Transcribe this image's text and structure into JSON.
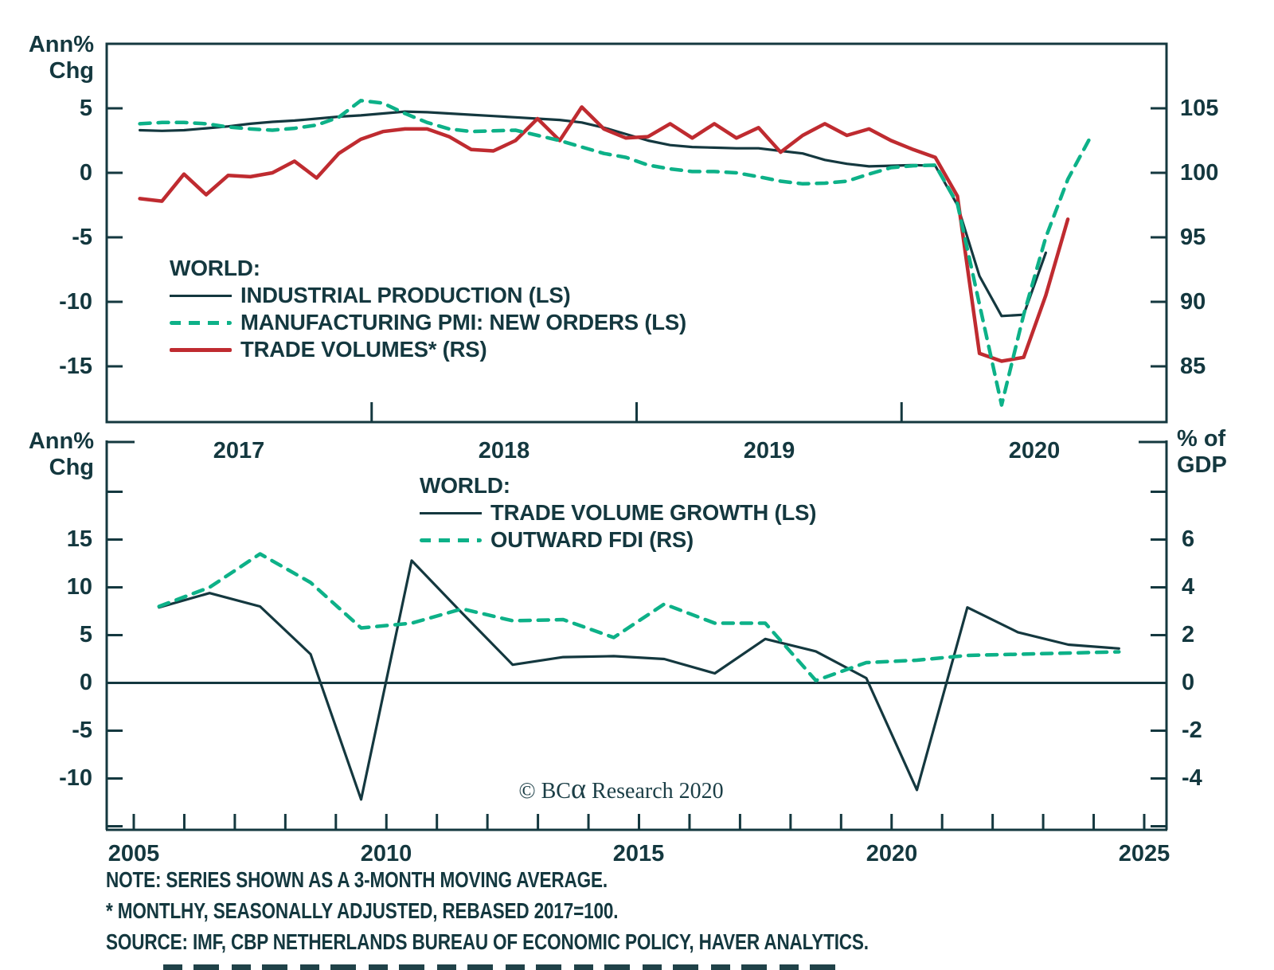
{
  "colors": {
    "ink": "#14383f",
    "green": "#0db188",
    "red": "#bf2b30",
    "background": "#ffffff"
  },
  "top_panel": {
    "y_axis_left": {
      "label_lines": [
        "Ann%",
        "Chg"
      ],
      "ticks": [
        "5",
        "0",
        "-5",
        "-10",
        "-15"
      ]
    },
    "y_axis_right": {
      "ticks": [
        "105",
        "100",
        "95",
        "90",
        "85"
      ]
    },
    "x_axis": {
      "labels": [
        "2017",
        "2018",
        "2019",
        "2020"
      ]
    },
    "legend": {
      "title": "WORLD:",
      "items": [
        {
          "label": "INDUSTRIAL PRODUCTION (LS)",
          "style": "solid",
          "color": "#14383f"
        },
        {
          "label": "MANUFACTURING PMI: NEW ORDERS (LS)",
          "style": "dashed",
          "color": "#0db188"
        },
        {
          "label": "TRADE VOLUMES* (RS)",
          "style": "solid",
          "color": "#bf2b30"
        }
      ]
    }
  },
  "bottom_panel": {
    "y_axis_left": {
      "label_lines": [
        "Ann%",
        "Chg"
      ],
      "ticks": [
        "15",
        "10",
        "5",
        "0",
        "-5",
        "-10"
      ]
    },
    "y_axis_right": {
      "label_lines": [
        "% of",
        "GDP"
      ],
      "ticks": [
        "6",
        "4",
        "2",
        "0",
        "-2",
        "-4"
      ]
    },
    "x_axis": {
      "labels": [
        "2005",
        "2010",
        "2015",
        "2020",
        "2025"
      ]
    },
    "legend": {
      "title": "WORLD:",
      "items": [
        {
          "label": "TRADE VOLUME GROWTH (LS)",
          "style": "solid",
          "color": "#14383f"
        },
        {
          "label": "OUTWARD FDI (RS)",
          "style": "dashed",
          "color": "#0db188"
        }
      ]
    },
    "copyright": {
      "prefix": "© BC",
      "alpha": "α",
      "suffix": " Research 2020"
    }
  },
  "footer": {
    "lines": [
      "NOTE: SERIES SHOWN AS A 3-MONTH MOVING AVERAGE.",
      "* MONTLHY, SEASONALLY ADJUSTED, REBASED 2017=100.",
      "SOURCE: IMF, CBP NETHERLANDS BUREAU OF ECONOMIC POLICY, HAVER ANALYTICS."
    ]
  },
  "chart_data": [
    {
      "type": "line",
      "panel": "top",
      "title": "WORLD",
      "x_unit": "month",
      "x_start": "2017-02",
      "x_axis_years": [
        2017,
        2018,
        2019,
        2020
      ],
      "ylim_left": [
        -19.3,
        10
      ],
      "ylim_right": [
        80.7,
        110
      ],
      "grid": false,
      "legend_position": "inside-left",
      "series": [
        {
          "name": "INDUSTRIAL PRODUCTION (LS)",
          "axis": "left",
          "style": "solid",
          "color": "#14383f",
          "values": [
            3.3,
            3.25,
            3.3,
            3.45,
            3.6,
            3.8,
            3.95,
            4.05,
            4.2,
            4.35,
            4.45,
            4.6,
            4.75,
            4.7,
            4.6,
            4.5,
            4.4,
            4.3,
            4.2,
            4.1,
            3.9,
            3.5,
            3.0,
            2.5,
            2.15,
            2.0,
            1.95,
            1.9,
            1.9,
            1.7,
            1.5,
            1.0,
            0.7,
            0.5,
            0.55,
            0.6,
            0.55,
            -2.5,
            -8.0,
            -11.1,
            -11.0,
            -6.2
          ]
        },
        {
          "name": "MANUFACTURING PMI: NEW ORDERS (LS)",
          "axis": "left",
          "style": "dashed",
          "color": "#0db188",
          "values": [
            3.8,
            3.9,
            3.9,
            3.8,
            3.55,
            3.4,
            3.3,
            3.45,
            3.7,
            4.3,
            5.6,
            5.4,
            4.6,
            3.9,
            3.4,
            3.2,
            3.25,
            3.3,
            2.9,
            2.5,
            2.0,
            1.5,
            1.2,
            0.6,
            0.3,
            0.1,
            0.1,
            0.0,
            -0.3,
            -0.65,
            -0.85,
            -0.8,
            -0.65,
            -0.1,
            0.4,
            0.55,
            0.6,
            -2.4,
            -10.2,
            -18.0,
            -11.0,
            -5.0,
            -0.5,
            2.7
          ]
        },
        {
          "name": "TRADE VOLUMES* (RS)",
          "axis": "right",
          "style": "solid",
          "color": "#bf2b30",
          "values": [
            98.0,
            97.8,
            99.9,
            98.3,
            99.8,
            99.7,
            100.0,
            100.9,
            99.6,
            101.5,
            102.6,
            103.2,
            103.4,
            103.4,
            102.8,
            101.8,
            101.7,
            102.5,
            104.2,
            102.5,
            105.1,
            103.4,
            102.7,
            102.8,
            103.8,
            102.7,
            103.8,
            102.7,
            103.5,
            101.6,
            102.9,
            103.8,
            102.9,
            103.4,
            102.5,
            101.8,
            101.2,
            98.2,
            86.0,
            85.4,
            85.7,
            90.5,
            96.4
          ]
        }
      ]
    },
    {
      "type": "line",
      "panel": "bottom",
      "title": "WORLD",
      "x_unit": "year",
      "x": [
        2005.5,
        2006.5,
        2007.5,
        2008.5,
        2009.5,
        2010.5,
        2011.5,
        2012.5,
        2013.5,
        2014.5,
        2015.5,
        2016.5,
        2017.5,
        2018.5,
        2019.5,
        2020.5,
        2021.5,
        2022.5,
        2023.5,
        2024.5
      ],
      "xlim": [
        2005,
        2025.4
      ],
      "ylim_left": [
        -15.4,
        25.4
      ],
      "ylim_right": [
        -6.2,
        10.2
      ],
      "grid": false,
      "zero_line": true,
      "legend_position": "inside-top-center",
      "series": [
        {
          "name": "TRADE VOLUME GROWTH (LS)",
          "axis": "left",
          "style": "solid",
          "color": "#14383f",
          "values": [
            7.9,
            9.4,
            8.0,
            3.0,
            -12.2,
            12.8,
            7.3,
            1.9,
            2.7,
            2.8,
            2.5,
            1.0,
            4.6,
            3.3,
            0.5,
            -11.2,
            7.9,
            5.3,
            4.0,
            3.6
          ]
        },
        {
          "name": "OUTWARD FDI (RS)",
          "axis": "right",
          "style": "dashed",
          "color": "#0db188",
          "values": [
            3.2,
            4.0,
            5.4,
            4.2,
            2.3,
            2.5,
            3.1,
            2.6,
            2.65,
            1.9,
            3.3,
            2.5,
            2.5,
            0.1,
            0.85,
            0.95,
            1.15,
            1.2,
            1.25,
            1.3
          ]
        }
      ]
    }
  ]
}
